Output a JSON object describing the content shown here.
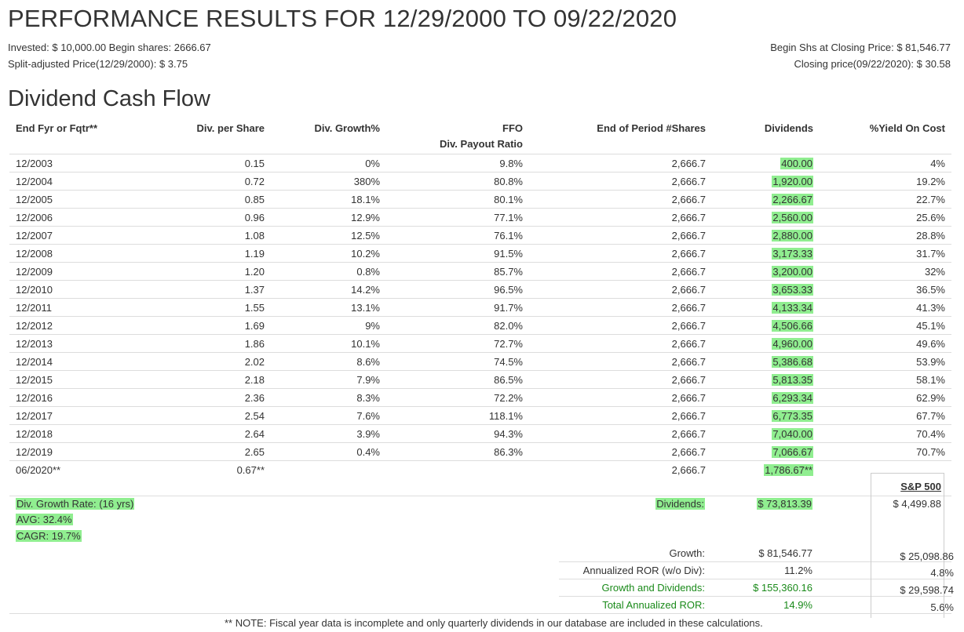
{
  "title": "PERFORMANCE RESULTS FOR 12/29/2000 TO 09/22/2020",
  "meta": {
    "invested": "Invested: $ 10,000.00 Begin shares: 2666.67",
    "split_price": "Split-adjusted Price(12/29/2000): $ 3.75",
    "begin_shs_value": "Begin Shs at Closing Price: $ 81,546.77",
    "closing_price": "Closing price(09/22/2020): $ 30.58"
  },
  "section_title": "Dividend Cash Flow",
  "table": {
    "headers": {
      "period": "End Fyr or Fqtr**",
      "div_per_share": "Div. per Share",
      "div_growth": "Div. Growth%",
      "ffo_line1": "FFO",
      "ffo_line2": "Div. Payout Ratio",
      "shares": "End of Period #Shares",
      "dividends": "Dividends",
      "yield": "%Yield On Cost"
    },
    "rows": [
      [
        "12/2003",
        "0.15",
        "0%",
        "9.8%",
        "2,666.7",
        "400.00",
        "4%"
      ],
      [
        "12/2004",
        "0.72",
        "380%",
        "80.8%",
        "2,666.7",
        "1,920.00",
        "19.2%"
      ],
      [
        "12/2005",
        "0.85",
        "18.1%",
        "80.1%",
        "2,666.7",
        "2,266.67",
        "22.7%"
      ],
      [
        "12/2006",
        "0.96",
        "12.9%",
        "77.1%",
        "2,666.7",
        "2,560.00",
        "25.6%"
      ],
      [
        "12/2007",
        "1.08",
        "12.5%",
        "76.1%",
        "2,666.7",
        "2,880.00",
        "28.8%"
      ],
      [
        "12/2008",
        "1.19",
        "10.2%",
        "91.5%",
        "2,666.7",
        "3,173.33",
        "31.7%"
      ],
      [
        "12/2009",
        "1.20",
        "0.8%",
        "85.7%",
        "2,666.7",
        "3,200.00",
        "32%"
      ],
      [
        "12/2010",
        "1.37",
        "14.2%",
        "96.5%",
        "2,666.7",
        "3,653.33",
        "36.5%"
      ],
      [
        "12/2011",
        "1.55",
        "13.1%",
        "91.7%",
        "2,666.7",
        "4,133.34",
        "41.3%"
      ],
      [
        "12/2012",
        "1.69",
        "9%",
        "82.0%",
        "2,666.7",
        "4,506.66",
        "45.1%"
      ],
      [
        "12/2013",
        "1.86",
        "10.1%",
        "72.7%",
        "2,666.7",
        "4,960.00",
        "49.6%"
      ],
      [
        "12/2014",
        "2.02",
        "8.6%",
        "74.5%",
        "2,666.7",
        "5,386.68",
        "53.9%"
      ],
      [
        "12/2015",
        "2.18",
        "7.9%",
        "86.5%",
        "2,666.7",
        "5,813.35",
        "58.1%"
      ],
      [
        "12/2016",
        "2.36",
        "8.3%",
        "72.2%",
        "2,666.7",
        "6,293.34",
        "62.9%"
      ],
      [
        "12/2017",
        "2.54",
        "7.6%",
        "118.1%",
        "2,666.7",
        "6,773.35",
        "67.7%"
      ],
      [
        "12/2018",
        "2.64",
        "3.9%",
        "94.3%",
        "2,666.7",
        "7,040.00",
        "70.4%"
      ],
      [
        "12/2019",
        "2.65",
        "0.4%",
        "86.3%",
        "2,666.7",
        "7,066.67",
        "70.7%"
      ],
      [
        "06/2020**",
        "0.67**",
        "",
        "",
        "2,666.7",
        "1,786.67**",
        ""
      ]
    ]
  },
  "summary": {
    "growth_rate_label": "Div. Growth Rate: (16 yrs)",
    "avg": "AVG: 32.4%",
    "cagr": "CAGR: 19.7%",
    "dividends_label": "Dividends:",
    "dividends_value": "$ 73,813.39",
    "growth_label": "Growth:",
    "growth_value": "$ 81,546.77",
    "ror_label": "Annualized ROR (w/o Div):",
    "ror_value": "11.2%",
    "gd_label": "Growth and Dividends:",
    "gd_value": "$ 155,360.16",
    "total_ror_label": "Total Annualized ROR:",
    "total_ror_value": "14.9%"
  },
  "sp500": {
    "title": "S&P 500",
    "dividends": "$ 4,499.88",
    "growth": "$ 25,098.86",
    "ror": "4.8%",
    "gd": "$ 29,598.74",
    "total_ror": "5.6%"
  },
  "note": "** NOTE: Fiscal year data is incomplete and only quarterly dividends in our database are included in these calculations.",
  "colors": {
    "highlight": "#90ee90",
    "green_text": "#1a8a1a"
  }
}
